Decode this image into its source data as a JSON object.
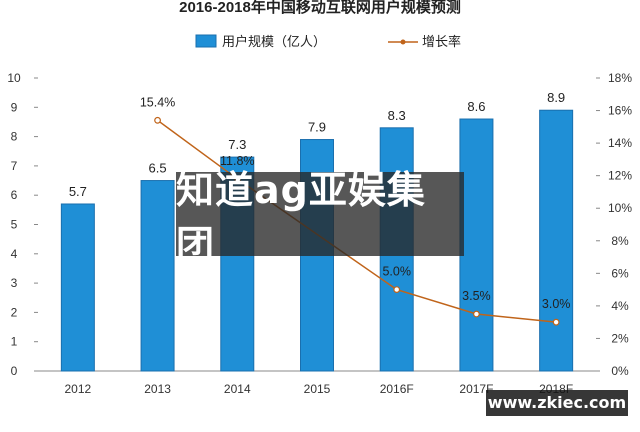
{
  "chart_data": {
    "type": "bar",
    "title": "2016-2018年中国移动互联网用户规模预测",
    "categories": [
      "2012",
      "2013",
      "2014",
      "2015",
      "2016F",
      "2017F",
      "2018F"
    ],
    "series": [
      {
        "name": "用户规模（亿人）",
        "type": "bar",
        "axis": "left",
        "values": [
          5.7,
          6.5,
          7.3,
          7.9,
          8.3,
          8.6,
          8.9
        ],
        "labels": [
          "5.7",
          "6.5",
          "7.3",
          "7.9",
          "8.3",
          "8.6",
          "8.9"
        ]
      },
      {
        "name": "增长率",
        "type": "line",
        "axis": "right",
        "values": [
          null,
          15.4,
          11.8,
          null,
          5.0,
          3.5,
          3.0
        ],
        "labels": [
          "",
          "15.4%",
          "11.8%",
          "",
          "5.0%",
          "3.5%",
          "3.0%"
        ]
      }
    ],
    "ylim_left": [
      0,
      10
    ],
    "yticks_left": [
      "0",
      "1",
      "2",
      "3",
      "4",
      "5",
      "6",
      "7",
      "8",
      "9",
      "10"
    ],
    "ylim_right": [
      0,
      18
    ],
    "yticks_right": [
      "0%",
      "2%",
      "4%",
      "6%",
      "8%",
      "10%",
      "12%",
      "14%",
      "16%",
      "18%"
    ],
    "legend_position": "top-center",
    "grid": false,
    "colors": {
      "bar": "#1f8fd6",
      "bar_border": "#1a6fae",
      "line": "#c0641a"
    }
  },
  "overlay": {
    "banner_text": "知道ag亚娱集团",
    "site_url": "www.zkiec.com"
  }
}
